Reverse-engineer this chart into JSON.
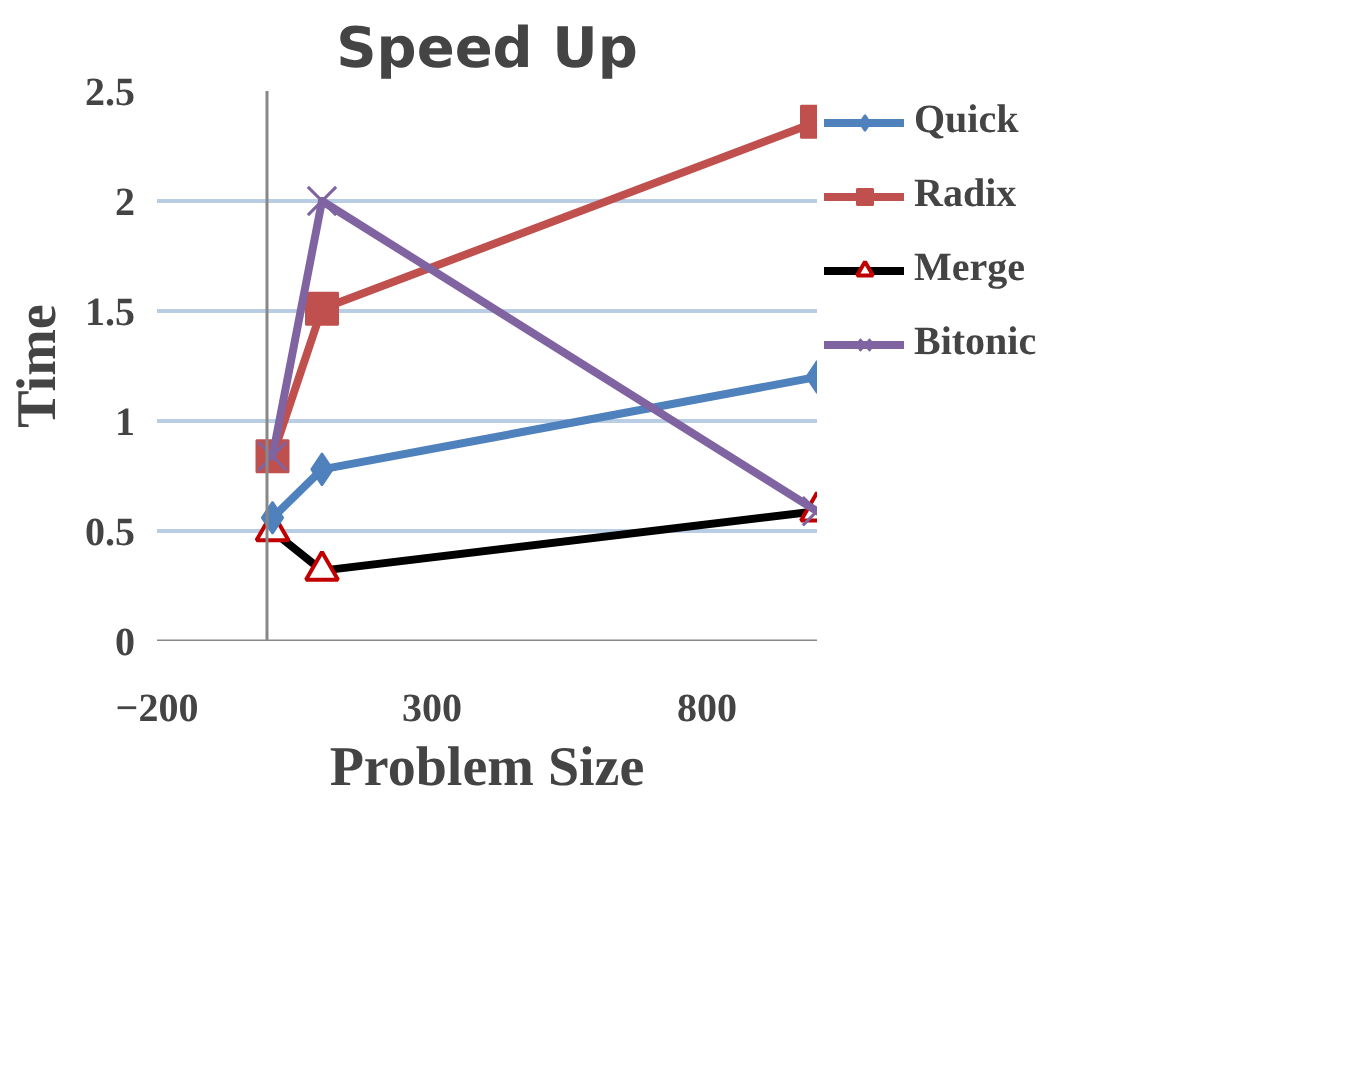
{
  "chart_data": {
    "type": "line",
    "title": "Speed Up",
    "xlabel": "Problem Size",
    "ylabel": "Time",
    "x": [
      10,
      100,
      1000
    ],
    "series": [
      {
        "name": "Quick",
        "color": "#4f81bd",
        "marker": "diamond",
        "values": [
          0.56,
          0.78,
          1.2
        ]
      },
      {
        "name": "Radix",
        "color": "#c0504d",
        "marker": "square",
        "values": [
          0.84,
          1.51,
          2.36
        ]
      },
      {
        "name": "Merge",
        "color": "#000000",
        "marker": "triangle",
        "values": [
          0.5,
          0.32,
          0.59
        ]
      },
      {
        "name": "Bitonic",
        "color": "#8064a2",
        "marker": "x",
        "values": [
          0.84,
          2.0,
          0.59
        ]
      }
    ],
    "xlim": [
      -200,
      1000
    ],
    "xticks": [
      -200,
      300,
      800
    ],
    "ylim": [
      0,
      2.5
    ],
    "yticks": [
      0,
      0.5,
      1,
      1.5,
      2,
      2.5
    ],
    "grid": "y",
    "legend": "right"
  }
}
